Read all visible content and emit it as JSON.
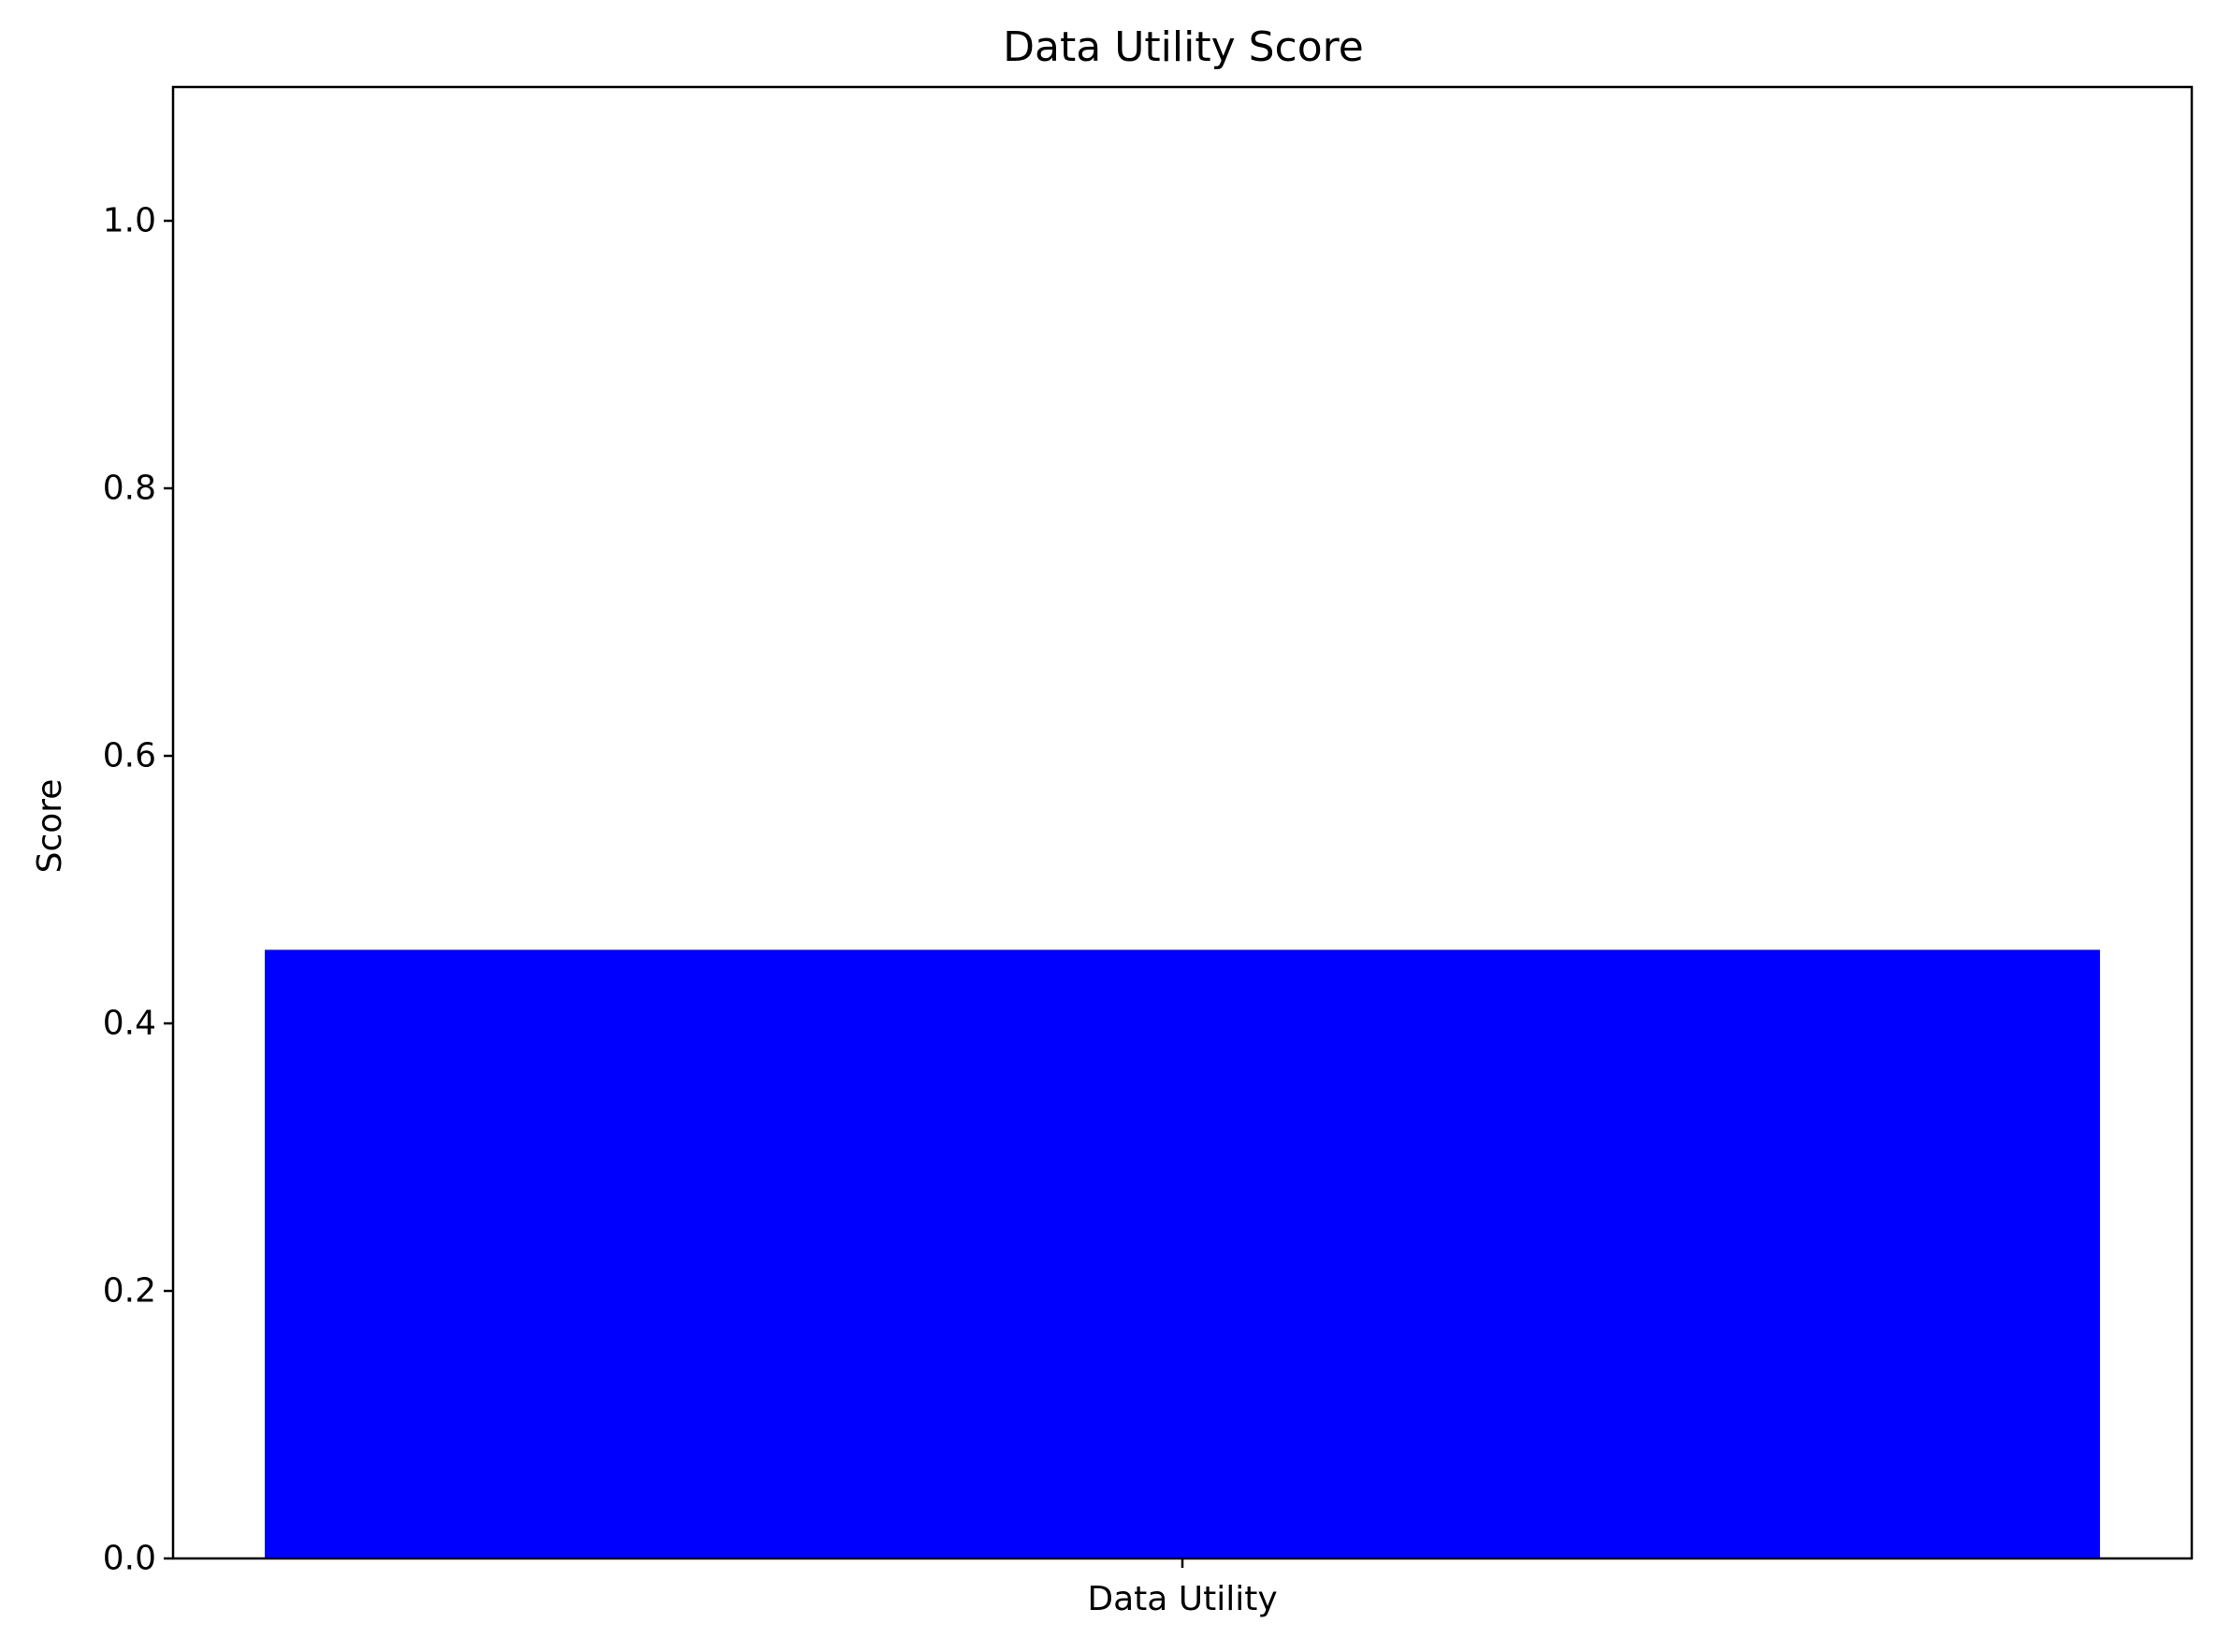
{
  "chart_data": {
    "type": "bar",
    "title": "Data Utility Score",
    "xlabel": "",
    "ylabel": "Score",
    "categories": [
      "Data Utility"
    ],
    "values": [
      0.455
    ],
    "ylim": [
      0,
      1.1
    ],
    "yticks": [
      0.0,
      0.2,
      0.4,
      0.6,
      0.8,
      1.0
    ],
    "ytick_labels": [
      "0.0",
      "0.2",
      "0.4",
      "0.6",
      "0.8",
      "1.0"
    ],
    "grid": false,
    "colors": {
      "bar": "#0000ff",
      "axis": "#000000",
      "background": "#ffffff"
    }
  }
}
